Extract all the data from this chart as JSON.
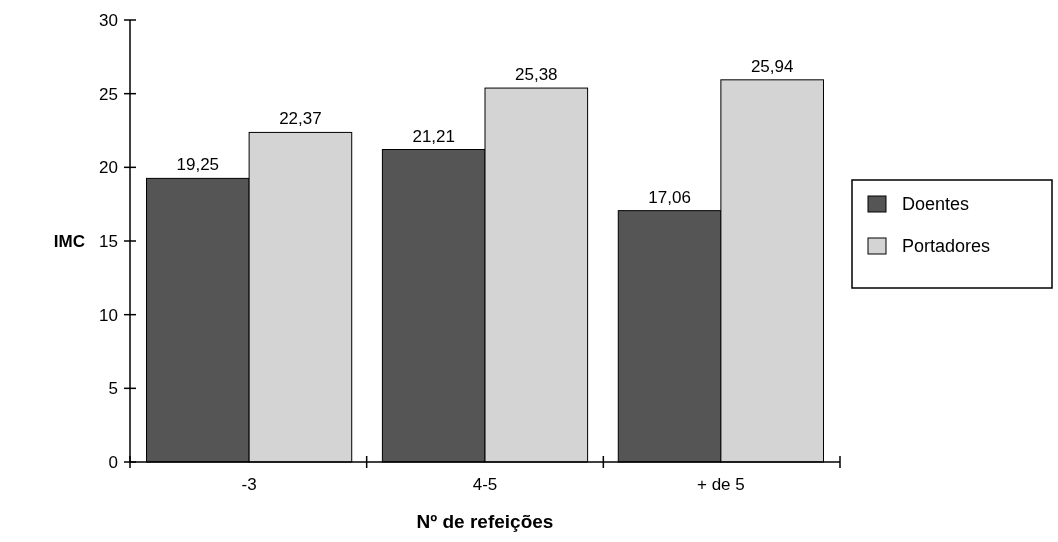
{
  "chart_data": {
    "type": "bar",
    "xlabel": "Nº de refeições",
    "ylabel": "IMC",
    "categories": [
      "-3",
      "4-5",
      "+ de 5"
    ],
    "series": [
      {
        "name": "Doentes",
        "color": "#555555",
        "values": [
          19.25,
          21.21,
          17.06
        ],
        "value_labels": [
          "19,25",
          "21,21",
          "17,06"
        ]
      },
      {
        "name": "Portadores",
        "color": "#d4d4d4",
        "values": [
          22.37,
          25.38,
          25.94
        ],
        "value_labels": [
          "22,37",
          "25,38",
          "25,94"
        ]
      }
    ],
    "ylim": [
      0,
      30
    ],
    "yticks": [
      0,
      5,
      10,
      15,
      20,
      25,
      30
    ],
    "legend": "right",
    "grid": false
  }
}
